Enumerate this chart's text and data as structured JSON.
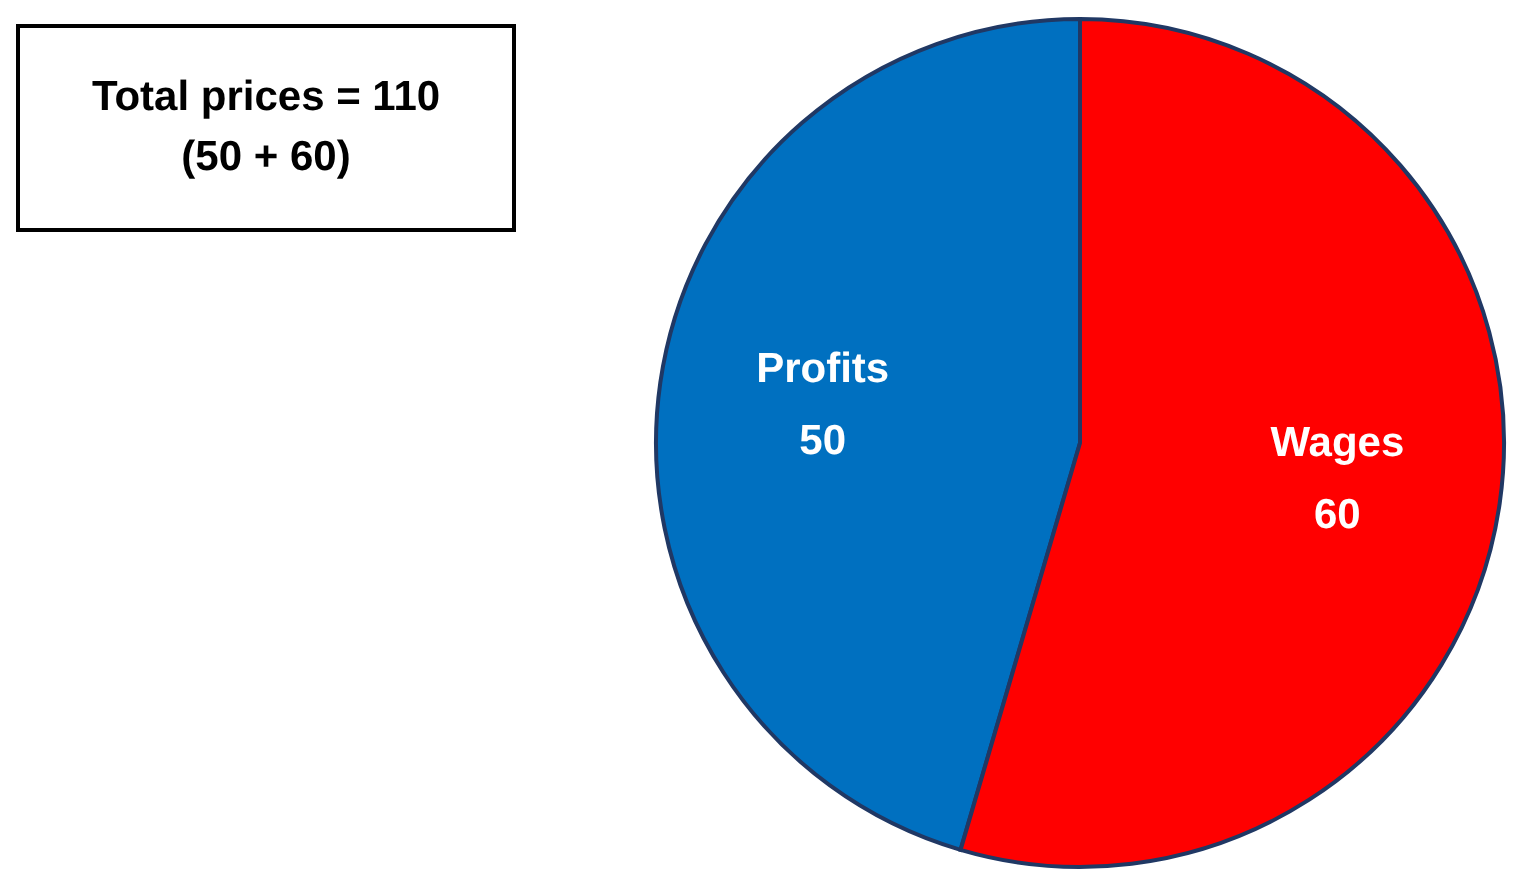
{
  "chart_data": {
    "type": "pie",
    "categories": [
      "Profits",
      "Wages"
    ],
    "values": [
      50,
      60
    ],
    "colors": [
      "#0070c0",
      "#ff0000"
    ],
    "data_labels": true,
    "annotations": [
      "Total prices = 110",
      "(50 + 60)"
    ]
  }
}
